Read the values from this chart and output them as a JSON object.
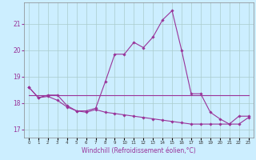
{
  "xlabel": "Windchill (Refroidissement éolien,°C)",
  "xlim": [
    -0.5,
    23.5
  ],
  "ylim": [
    16.7,
    21.8
  ],
  "yticks": [
    17,
    18,
    19,
    20,
    21
  ],
  "xticks": [
    0,
    1,
    2,
    3,
    4,
    5,
    6,
    7,
    8,
    9,
    10,
    11,
    12,
    13,
    14,
    15,
    16,
    17,
    18,
    19,
    20,
    21,
    22,
    23
  ],
  "background_color": "#cceeff",
  "grid_color": "#aacccc",
  "line_color": "#993399",
  "series_upper": [
    18.6,
    18.2,
    18.3,
    18.3,
    17.9,
    17.7,
    17.7,
    17.8,
    18.8,
    19.85,
    19.85,
    20.3,
    20.1,
    20.5,
    21.15,
    21.5,
    20.0,
    18.35,
    18.35,
    17.65,
    17.4,
    17.2,
    17.5,
    17.5
  ],
  "series_flat": [
    18.3,
    18.3,
    18.3,
    18.3,
    18.3,
    18.3,
    18.3,
    18.3,
    18.3,
    18.3,
    18.3,
    18.3,
    18.3,
    18.3,
    18.3,
    18.3,
    18.3,
    18.3,
    18.3,
    18.3,
    18.3,
    18.3,
    18.3,
    18.3
  ],
  "series_lower": [
    18.6,
    18.2,
    18.25,
    18.1,
    17.85,
    17.7,
    17.65,
    17.75,
    17.65,
    17.6,
    17.55,
    17.5,
    17.45,
    17.4,
    17.35,
    17.3,
    17.25,
    17.2,
    17.2,
    17.2,
    17.2,
    17.2,
    17.2,
    17.45
  ]
}
